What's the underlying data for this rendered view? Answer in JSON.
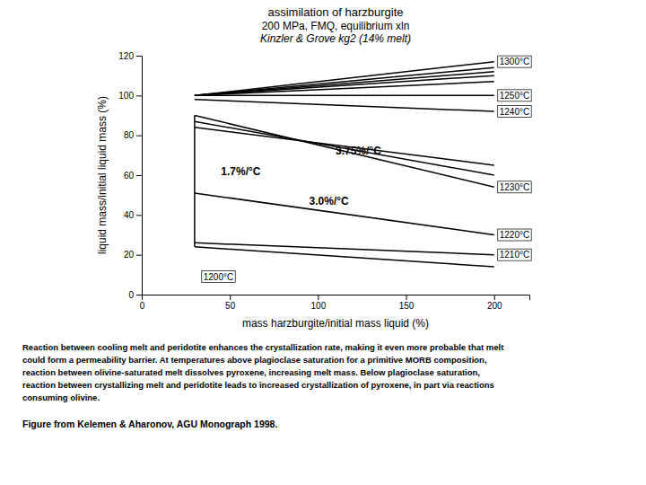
{
  "chart_data": {
    "type": "line",
    "title": "assimilation of harzburgite",
    "subtitle": [
      "200 MPa, FMQ, equilibrium xln",
      "Kinzler & Grove kg2 (14% melt)"
    ],
    "x_label": "mass harzburgite/initial mass liquid (%)",
    "y_label": "liquid mass/initial liquid mass (%)",
    "xlim": [
      0,
      220
    ],
    "ylim": [
      0,
      120
    ],
    "xticks": [
      0,
      50,
      100,
      150,
      200
    ],
    "yticks": [
      0,
      20,
      40,
      60,
      80,
      100,
      120
    ],
    "grid": false,
    "color": "black",
    "series": [
      {
        "x": [
          30,
          200
        ],
        "values": [
          100,
          117
        ],
        "label": "1300°C"
      },
      {
        "x": [
          30,
          200
        ],
        "values": [
          100,
          114
        ]
      },
      {
        "x": [
          30,
          200
        ],
        "values": [
          100,
          112
        ]
      },
      {
        "x": [
          30,
          200
        ],
        "values": [
          100,
          110
        ]
      },
      {
        "x": [
          30,
          200
        ],
        "values": [
          100,
          107
        ]
      },
      {
        "x": [
          30,
          200
        ],
        "values": [
          100,
          100
        ],
        "label": "1250°C"
      },
      {
        "x": [
          30,
          200
        ],
        "values": [
          98,
          92
        ],
        "label": "1240°C"
      },
      {
        "x": [
          30,
          200
        ],
        "values": [
          90,
          54
        ],
        "label": "1230°C"
      },
      {
        "x": [
          30,
          200
        ],
        "values": [
          87,
          60
        ]
      },
      {
        "x": [
          30,
          200
        ],
        "values": [
          84,
          65
        ]
      },
      {
        "x": [
          30,
          30
        ],
        "values": [
          24,
          90
        ]
      },
      {
        "x": [
          30,
          200
        ],
        "values": [
          51,
          30
        ],
        "label": "1220°C"
      },
      {
        "x": [
          30,
          200
        ],
        "values": [
          26,
          20
        ],
        "label": "1210°C"
      },
      {
        "x": [
          30,
          200
        ],
        "values": [
          24,
          14
        ],
        "label": "1200°C",
        "label_x": 35,
        "label_y": 9
      }
    ],
    "annotations": [
      {
        "text": "1.7%/°C",
        "x": 45,
        "y": 62
      },
      {
        "text": "3.75%/°C",
        "x": 110,
        "y": 72
      },
      {
        "text": "3.0%/°C",
        "x": 95,
        "y": 47
      }
    ],
    "caption": [
      "Reaction between cooling melt and peridotite enhances the crystallization rate, making it even more probable that melt",
      "could form a permeability barrier.  At temperatures above plagioclase saturation for a primitive MORB composition,",
      "reaction between olivine-saturated melt dissolves pyroxene, increasing melt mass.  Below plagioclase saturation,",
      "reaction between crystallizing melt and peridotite leads to increased crystallization of pyroxene, in part via reactions",
      "consuming olivine."
    ],
    "credit": "Figure from Kelemen & Aharonov, AGU Monograph 1998."
  }
}
